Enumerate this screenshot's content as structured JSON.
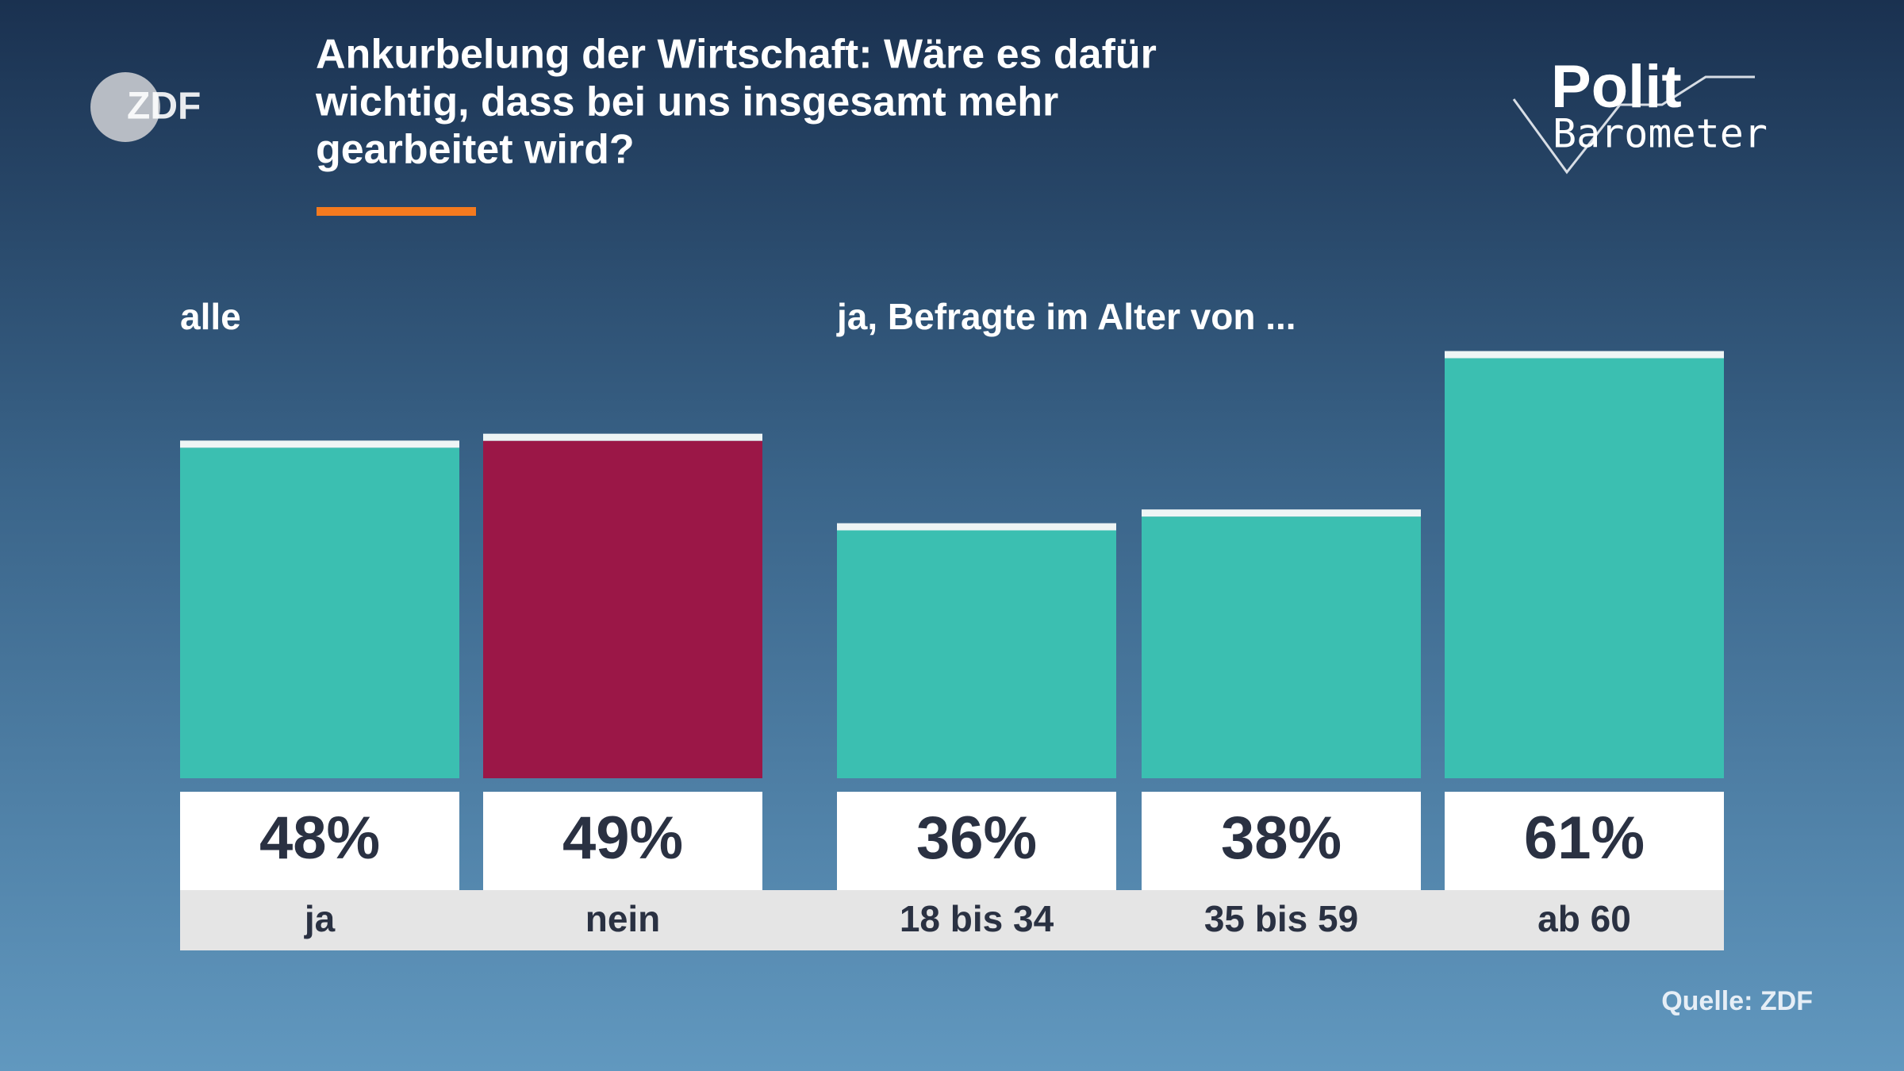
{
  "title_lines": [
    "Ankurbelung der Wirtschaft: Wäre es dafür",
    "wichtig, dass bei uns insgesamt mehr",
    "gearbeitet wird?"
  ],
  "logo": "ZDF",
  "brand": [
    "Polit",
    "Barometer"
  ],
  "source": "Quelle: ZDF",
  "chart_data": [
    {
      "type": "bar",
      "label": "alle",
      "categories": [
        "ja",
        "nein"
      ],
      "values": [
        48,
        49
      ],
      "value_labels": [
        "48%",
        "49%"
      ],
      "colors": [
        "#3bbfb1",
        "#9b1747"
      ],
      "ylim": [
        0,
        100
      ]
    },
    {
      "type": "bar",
      "label": "ja, Befragte im Alter von ...",
      "categories": [
        "18 bis 34",
        "35 bis 59",
        "ab 60"
      ],
      "values": [
        36,
        38,
        61
      ],
      "value_labels": [
        "36%",
        "38%",
        "61%"
      ],
      "colors": [
        "#3bbfb1",
        "#3bbfb1",
        "#3bbfb1"
      ],
      "ylim": [
        0,
        100
      ]
    }
  ]
}
